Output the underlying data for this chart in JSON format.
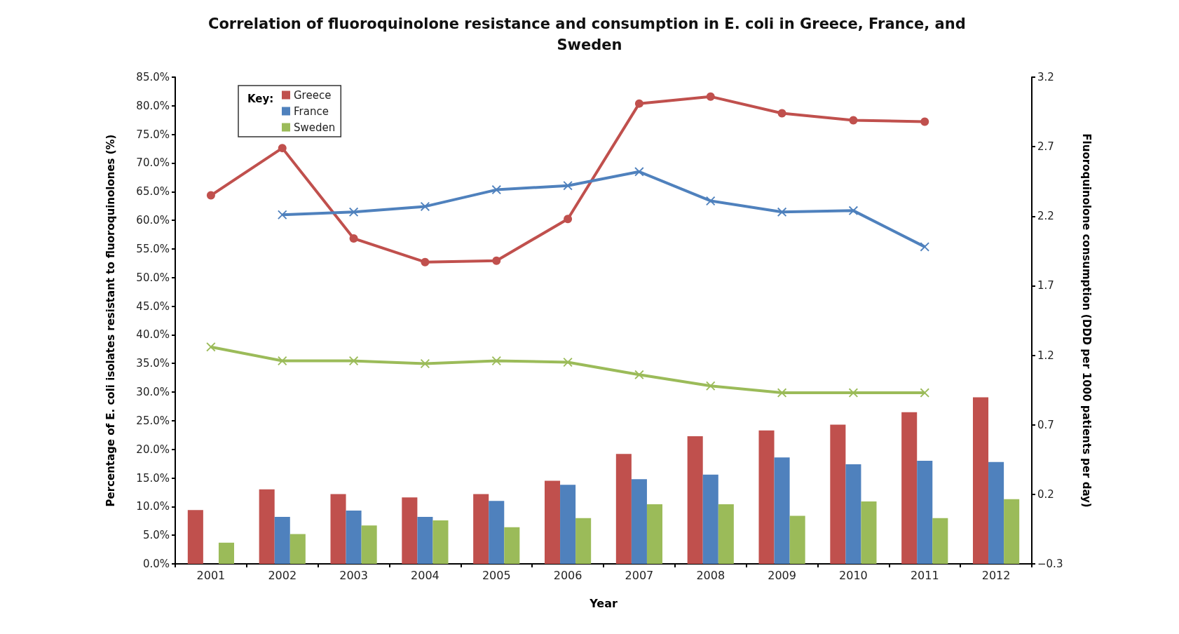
{
  "chart_data": {
    "type": "bar",
    "title": "Correlation of fluoroquinolone resistance and consumption in E. coli in Greece, France, and Sweden",
    "xlabel": "Year",
    "ylabel": "Percentage of E. coli isolates resistant to fluoroquinolones (%)",
    "y2label": "Fluoroquinolone consumption (DDD per 1000 patients per day)",
    "legend_title": "Key:",
    "legend": "top left",
    "grid": false,
    "categories": [
      "2001",
      "2002",
      "2003",
      "2004",
      "2005",
      "2006",
      "2007",
      "2008",
      "2009",
      "2010",
      "2011",
      "2012"
    ],
    "ylim": [
      0,
      85
    ],
    "yticks": [
      {
        "value": 0,
        "label": "0.0%"
      },
      {
        "value": 5,
        "label": "5.0%"
      },
      {
        "value": 10,
        "label": "10.0%"
      },
      {
        "value": 15,
        "label": "15.0%"
      },
      {
        "value": 20,
        "label": "20.0%"
      },
      {
        "value": 25,
        "label": "25.0%"
      },
      {
        "value": 30,
        "label": "30.0%"
      },
      {
        "value": 35,
        "label": "35.0%"
      },
      {
        "value": 40,
        "label": "40.0%"
      },
      {
        "value": 45,
        "label": "45.0%"
      },
      {
        "value": 50,
        "label": "50.0%"
      },
      {
        "value": 55,
        "label": "55.0%"
      },
      {
        "value": 60,
        "label": "60.0%"
      },
      {
        "value": 65,
        "label": "65.0%"
      },
      {
        "value": 70,
        "label": "70.0%"
      },
      {
        "value": 75,
        "label": "75.0%"
      },
      {
        "value": 80,
        "label": "80.0%"
      },
      {
        "value": 85,
        "label": "85.0%"
      }
    ],
    "y2lim": [
      -0.3,
      3.2
    ],
    "y2ticks": [
      {
        "value": -0.3,
        "label": "−0.3"
      },
      0.2,
      0.7,
      1.2,
      1.7,
      2.2,
      2.7,
      3.2
    ],
    "series": [
      {
        "name": "Greece",
        "color": "#c0504d",
        "values": [
          9.4,
          13.0,
          12.2,
          11.6,
          12.2,
          14.5,
          19.2,
          22.3,
          23.3,
          24.3,
          26.5,
          29.1
        ]
      },
      {
        "name": "France",
        "color": "#4f81bd",
        "values": [
          null,
          8.2,
          9.3,
          8.2,
          11.0,
          13.8,
          14.8,
          15.6,
          18.6,
          17.4,
          18.0,
          17.8
        ]
      },
      {
        "name": "Sweden",
        "color": "#9bbb59",
        "values": [
          3.7,
          5.2,
          6.7,
          7.6,
          6.4,
          8.0,
          10.4,
          10.4,
          8.4,
          10.9,
          8.0,
          11.3
        ]
      },
      {
        "type": "line",
        "axis": "y2",
        "marker": "circle",
        "color": "#c0504d",
        "values": [
          2.35,
          2.69,
          2.04,
          1.87,
          1.88,
          2.18,
          3.01,
          3.06,
          2.94,
          2.89,
          2.88,
          null
        ]
      },
      {
        "type": "line",
        "axis": "y2",
        "marker": "cross",
        "color": "#4f81bd",
        "values": [
          null,
          2.21,
          2.23,
          2.27,
          2.39,
          2.42,
          2.52,
          2.31,
          2.23,
          2.24,
          1.98,
          null
        ]
      },
      {
        "type": "line",
        "axis": "y2",
        "marker": "cross",
        "color": "#9bbb59",
        "values": [
          1.26,
          1.16,
          1.16,
          1.14,
          1.16,
          1.15,
          1.06,
          0.98,
          0.93,
          0.93,
          0.93,
          null
        ]
      }
    ]
  }
}
